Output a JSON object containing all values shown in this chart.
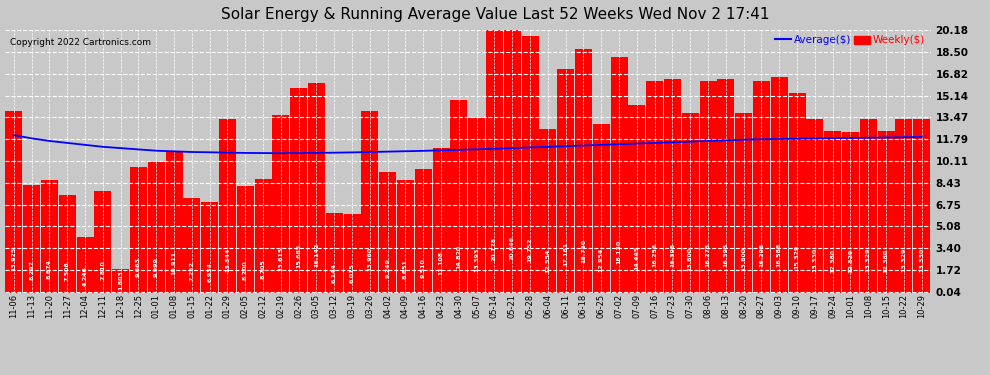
{
  "title": "Solar Energy & Running Average Value Last 52 Weeks Wed Nov 2 17:41",
  "copyright": "Copyright 2022 Cartronics.com",
  "bar_color": "#ff0000",
  "avg_line_color": "#0000ff",
  "background_color": "#e8e8e8",
  "plot_bg_color": "#d4d4d4",
  "grid_color": "#ffffff",
  "legend_avg": "Average($)",
  "legend_weekly": "Weekly($)",
  "yticks": [
    0.04,
    1.72,
    3.4,
    5.08,
    6.75,
    8.43,
    10.11,
    11.79,
    13.47,
    15.14,
    16.82,
    18.5,
    20.18
  ],
  "categories": [
    "11-06",
    "11-13",
    "11-20",
    "11-27",
    "12-04",
    "12-11",
    "12-18",
    "12-25",
    "01-01",
    "01-08",
    "01-15",
    "01-22",
    "01-29",
    "02-05",
    "02-12",
    "02-19",
    "02-26",
    "03-05",
    "03-12",
    "03-19",
    "03-26",
    "04-02",
    "04-09",
    "04-16",
    "04-23",
    "04-30",
    "05-07",
    "05-14",
    "05-21",
    "05-28",
    "06-04",
    "06-11",
    "06-18",
    "06-25",
    "07-02",
    "07-09",
    "07-16",
    "07-23",
    "07-30",
    "08-06",
    "08-13",
    "08-20",
    "08-27",
    "09-03",
    "09-10",
    "09-17",
    "09-24",
    "10-01",
    "10-08",
    "10-15",
    "10-22",
    "10-29"
  ],
  "weekly_values": [
    13.925,
    8.297,
    8.674,
    7.506,
    4.246,
    7.81,
    1.803,
    9.663,
    9.999,
    10.911,
    7.252,
    6.934,
    13.344,
    8.2,
    8.705,
    13.615,
    15.685,
    16.142,
    6.144,
    6.015,
    13.96,
    9.249,
    8.651,
    9.51,
    11.108,
    14.82,
    13.393,
    20.178,
    20.646,
    19.752,
    12.554,
    17.161,
    18.73,
    12.954,
    18.13,
    14.445,
    16.256,
    16.395,
    13.8,
    16.275,
    16.395,
    13.8,
    16.295,
    16.588,
    15.329,
    13.33,
    12.38,
    12.329,
    13.329,
    12.38,
    13.329,
    13.33
  ],
  "avg_values": [
    12.1,
    11.85,
    11.65,
    11.5,
    11.35,
    11.2,
    11.1,
    11.0,
    10.9,
    10.85,
    10.8,
    10.78,
    10.75,
    10.73,
    10.72,
    10.71,
    10.72,
    10.73,
    10.75,
    10.77,
    10.8,
    10.83,
    10.86,
    10.89,
    10.93,
    10.97,
    11.01,
    11.05,
    11.1,
    11.15,
    11.2,
    11.25,
    11.3,
    11.35,
    11.4,
    11.45,
    11.5,
    11.55,
    11.6,
    11.65,
    11.7,
    11.75,
    11.78,
    11.8,
    11.82,
    11.84,
    11.86,
    11.88,
    11.9,
    11.92,
    11.94,
    11.96
  ],
  "ymin": 0.0,
  "ymax": 20.18,
  "title_fontsize": 11,
  "copyright_fontsize": 6.5,
  "bar_label_fontsize": 4.5,
  "tick_label_fontsize": 6.0,
  "ytick_fontsize": 7.5
}
